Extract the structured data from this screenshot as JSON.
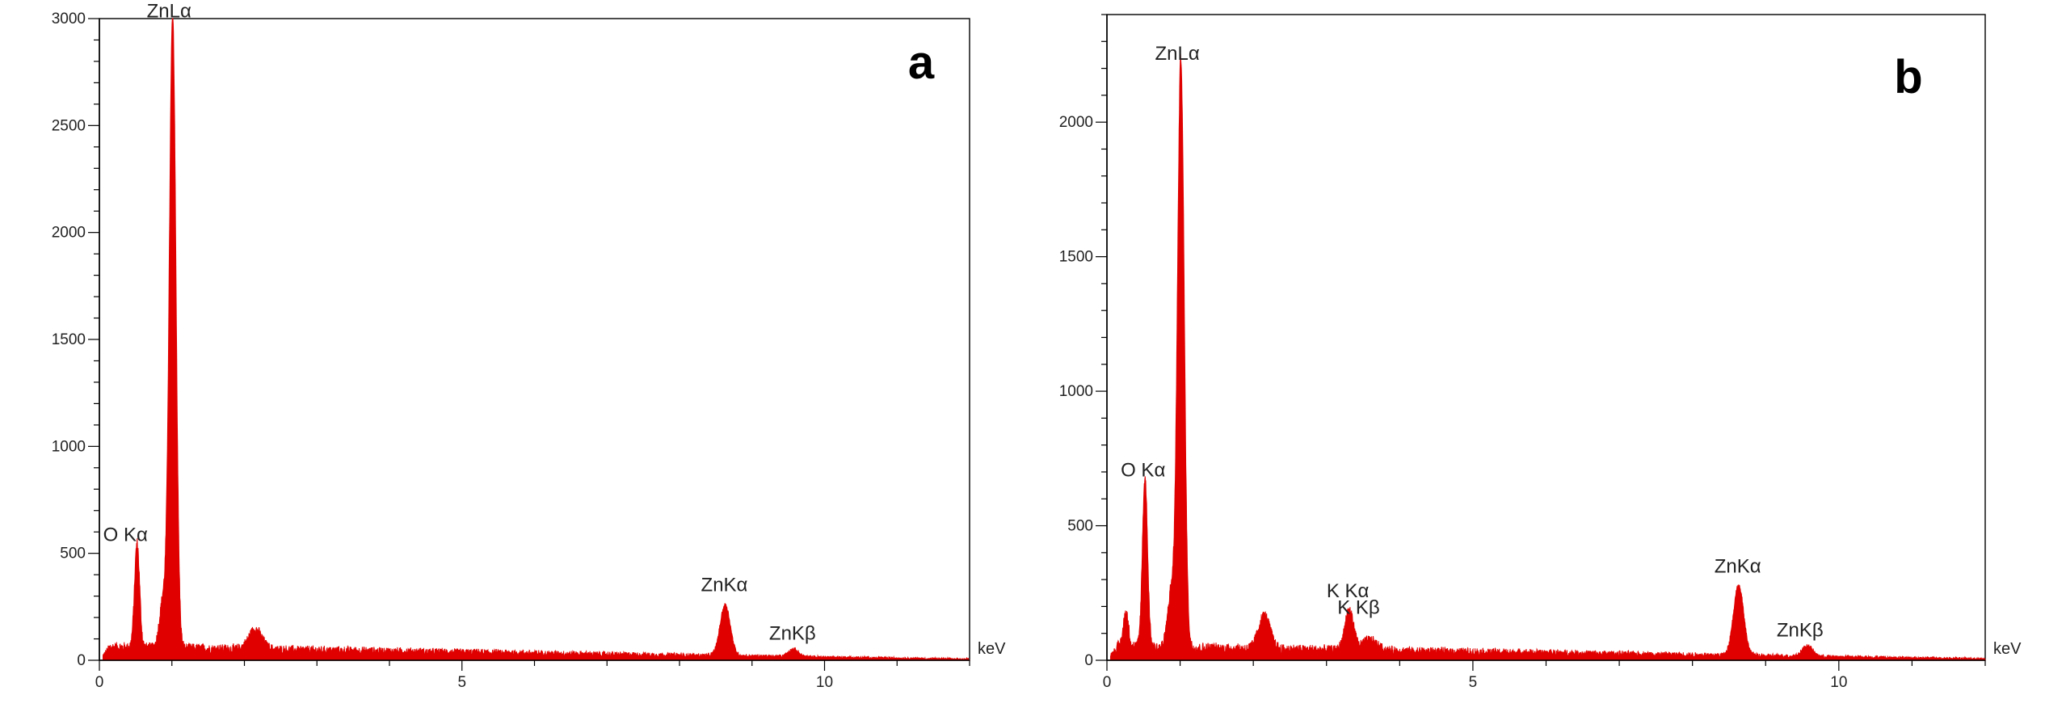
{
  "colors": {
    "spectrum": "#e00000",
    "axis": "#000000",
    "text": "#222222"
  },
  "chart_data": [
    {
      "type": "area",
      "panel_label": "a",
      "xlabel": "keV",
      "xlim": [
        0,
        12
      ],
      "ylim": [
        0,
        3000
      ],
      "x_ticks": [
        0,
        5,
        10
      ],
      "x_tick_labels": [
        "0",
        "5",
        "10"
      ],
      "y_ticks": [
        0,
        500,
        1000,
        1500,
        2000,
        2500,
        3000
      ],
      "y_tick_labels": [
        "0",
        "500",
        "1000",
        "1500",
        "2000",
        "2500",
        "3000"
      ],
      "peaks": [
        {
          "label": "O Kα",
          "x": 0.52,
          "y": 490,
          "width": 0.035
        },
        {
          "label": "ZnLα",
          "x": 1.01,
          "y": 2960,
          "width": 0.045
        },
        {
          "label": "ZnKα",
          "x": 8.63,
          "y": 240,
          "width": 0.07
        },
        {
          "label": "ZnKβ",
          "x": 9.57,
          "y": 35,
          "width": 0.07
        }
      ],
      "extra_peaks": [
        {
          "x": 0.88,
          "y": 230,
          "width": 0.05
        },
        {
          "x": 2.15,
          "y": 95,
          "width": 0.09
        }
      ],
      "background": {
        "start": 60,
        "end": 5
      }
    },
    {
      "type": "area",
      "panel_label": "b",
      "xlabel": "keV",
      "xlim": [
        0,
        12
      ],
      "ylim": [
        0,
        2400
      ],
      "x_ticks": [
        0,
        5,
        10
      ],
      "x_tick_labels": [
        "0",
        "5",
        "10"
      ],
      "y_ticks": [
        0,
        500,
        1000,
        1500,
        2000
      ],
      "y_tick_labels": [
        "0",
        "500",
        "1000",
        "1500",
        "2000"
      ],
      "peaks": [
        {
          "label": "O Kα",
          "x": 0.52,
          "y": 630,
          "width": 0.035
        },
        {
          "label": "ZnLα",
          "x": 1.01,
          "y": 2190,
          "width": 0.045
        },
        {
          "label": "K Kα",
          "x": 3.31,
          "y": 150,
          "width": 0.06
        },
        {
          "label": "K Kβ",
          "x": 3.59,
          "y": 40,
          "width": 0.1
        },
        {
          "label": "ZnKα",
          "x": 8.63,
          "y": 260,
          "width": 0.07
        },
        {
          "label": "ZnKβ",
          "x": 9.57,
          "y": 40,
          "width": 0.07
        }
      ],
      "extra_peaks": [
        {
          "x": 0.26,
          "y": 130,
          "width": 0.035
        },
        {
          "x": 0.88,
          "y": 210,
          "width": 0.05
        },
        {
          "x": 2.15,
          "y": 125,
          "width": 0.08
        }
      ],
      "background": {
        "start": 50,
        "end": 5
      }
    }
  ]
}
